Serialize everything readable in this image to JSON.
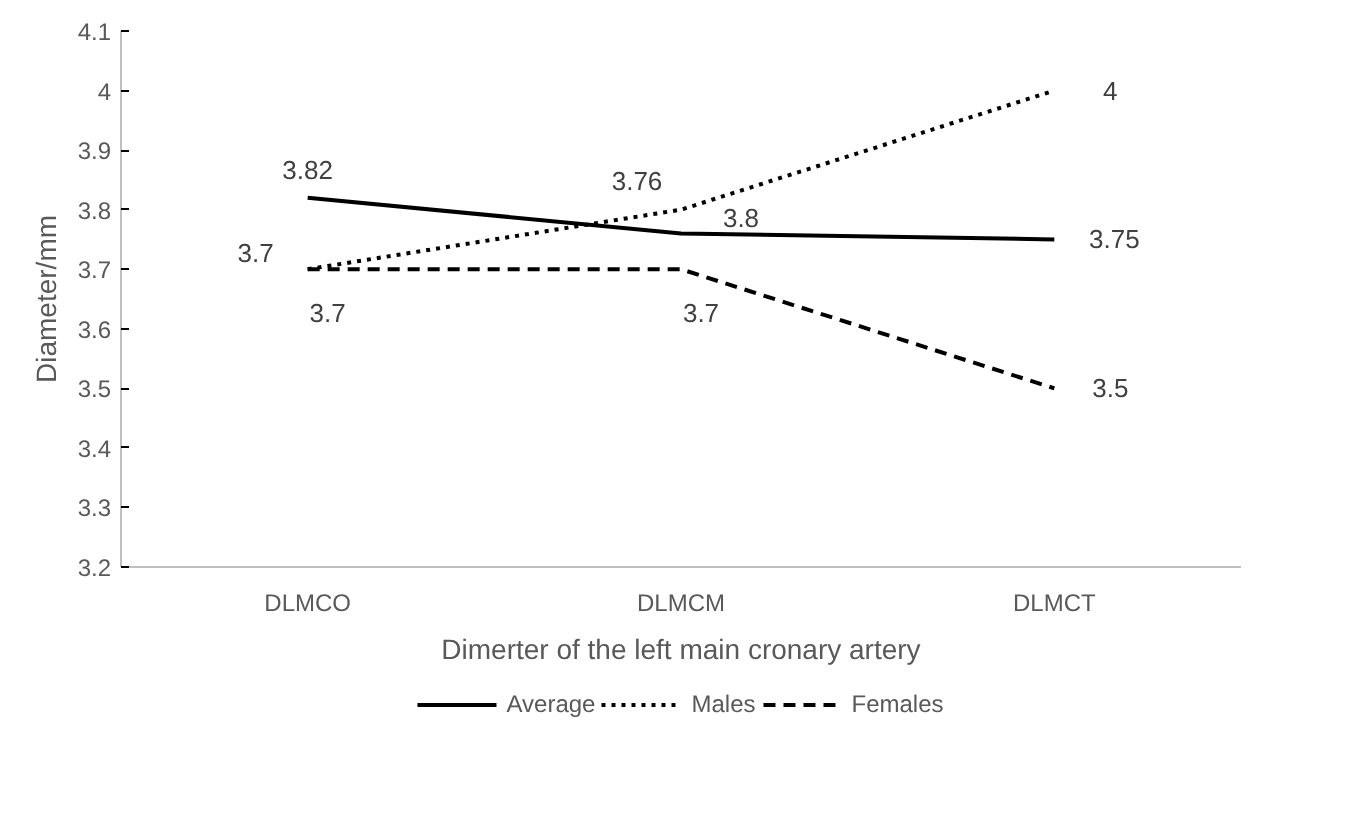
{
  "chart_data": {
    "type": "line",
    "xlabel": "Dimerter of the left main cronary artery",
    "ylabel": "Diameter/mm",
    "categories": [
      "DLMCO",
      "DLMCM",
      "DLMCT"
    ],
    "series": [
      {
        "name": "Average",
        "color": "#000000",
        "line_style": "solid",
        "values": [
          3.82,
          3.76,
          3.75
        ]
      },
      {
        "name": "Males",
        "color": "#000000",
        "line_style": "dotted",
        "values": [
          3.7,
          3.8,
          4
        ]
      },
      {
        "name": "Females",
        "color": "#000000",
        "line_style": "dashed",
        "values": [
          3.7,
          3.7,
          3.5
        ]
      }
    ],
    "ylim": [
      3.2,
      4.1
    ],
    "yticks": [
      3.2,
      3.3,
      3.4,
      3.5,
      3.6,
      3.7,
      3.8,
      3.9,
      4,
      4.1
    ],
    "grid": false,
    "legend": "bottom",
    "data_labels": true,
    "marker": "none"
  }
}
